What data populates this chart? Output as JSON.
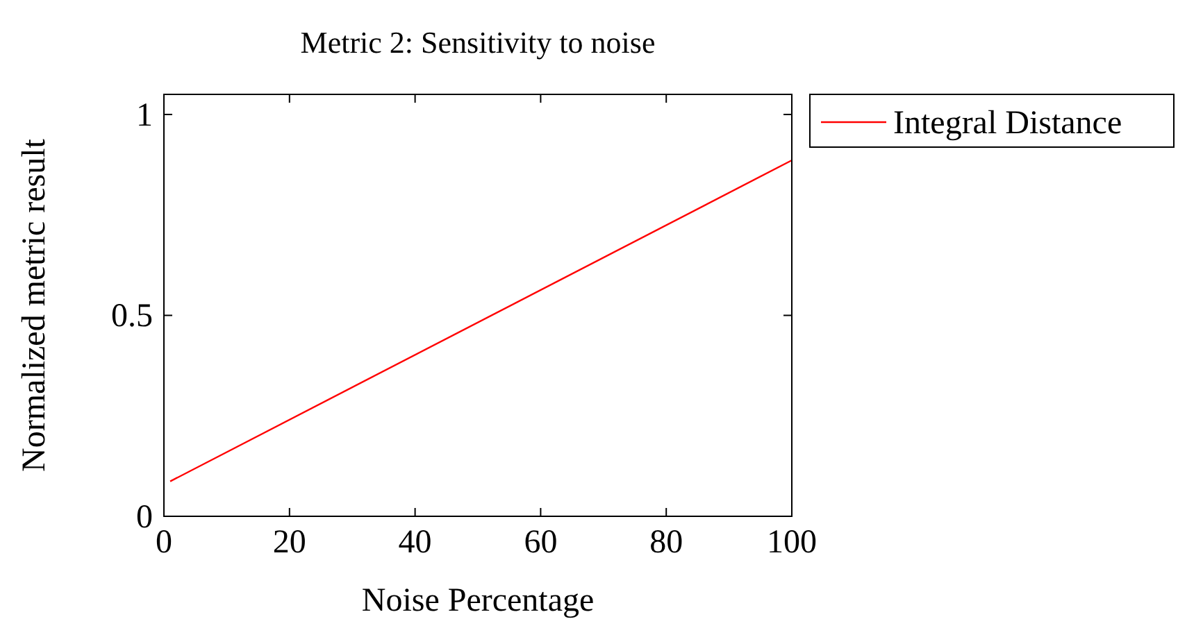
{
  "chart_data": {
    "type": "line",
    "title": "Metric 2: Sensitivity to noise",
    "xlabel": "Noise Percentage",
    "ylabel": "Normalized metric result",
    "x": [
      1,
      100
    ],
    "series": [
      {
        "name": "Integral Distance",
        "color": "#ff0000",
        "values": [
          0.087,
          0.886
        ]
      }
    ],
    "xlim": [
      0,
      100
    ],
    "ylim": [
      0,
      1.05
    ],
    "xticks": [
      0,
      20,
      40,
      60,
      80,
      100
    ],
    "yticks": [
      0,
      0.5,
      1
    ],
    "grid": false,
    "legend": "top right",
    "marker": "none",
    "line_style": "solid"
  }
}
